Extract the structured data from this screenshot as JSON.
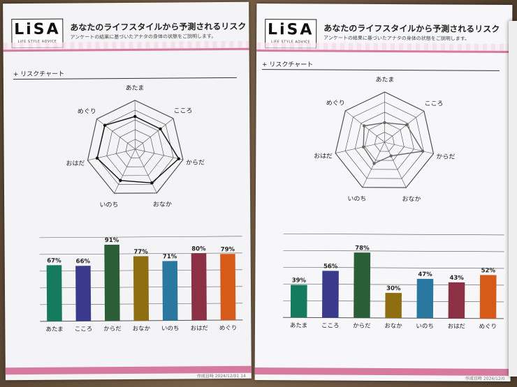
{
  "header": {
    "logo_main": "LiSA",
    "logo_sub": "LIFE STYLE ADVICE",
    "title": "あなたのライフスタイルから予測されるリスク",
    "subtitle": "アンケートの結果に基づいたアナタの身体の状態をご説明します。"
  },
  "section": {
    "label": "リスクチャート",
    "plus_icon": "plus-icon"
  },
  "footer": {
    "label_left": "作成日時 2024/12/01 14",
    "label_right": "作成日時 2024/12/0"
  },
  "colors": {
    "header_line": "#d67aa0",
    "bars": [
      "#157a5e",
      "#3a3a8c",
      "#2b5d37",
      "#8e6e10",
      "#2a78a0",
      "#8b3045",
      "#d65a1a"
    ]
  },
  "chart_data": [
    {
      "type": "radar",
      "categories": [
        "あたま",
        "こころ",
        "からだ",
        "おなか",
        "いのち",
        "おはだ",
        "めぐり"
      ],
      "values": [
        67,
        66,
        91,
        77,
        71,
        80,
        79
      ],
      "rmax": 100,
      "rings": 5
    },
    {
      "type": "bar",
      "categories": [
        "あたま",
        "こころ",
        "からだ",
        "おなか",
        "いのち",
        "おはだ",
        "めぐり"
      ],
      "values": [
        67,
        66,
        91,
        77,
        71,
        80,
        79
      ],
      "labels": [
        "67%",
        "66%",
        "91%",
        "77%",
        "71%",
        "80%",
        "79%"
      ],
      "ylim": [
        0,
        100
      ],
      "grid": true
    },
    {
      "type": "radar",
      "categories": [
        "あたま",
        "こころ",
        "からだ",
        "おなか",
        "いのち",
        "おはだ",
        "めぐり"
      ],
      "values": [
        39,
        56,
        78,
        30,
        47,
        43,
        52
      ],
      "rmax": 100,
      "rings": 5
    },
    {
      "type": "bar",
      "categories": [
        "あたま",
        "こころ",
        "からだ",
        "おなか",
        "いのち",
        "おはだ",
        "めぐり"
      ],
      "values": [
        39,
        56,
        78,
        30,
        47,
        43,
        52
      ],
      "labels": [
        "39%",
        "56%",
        "78%",
        "30%",
        "47%",
        "43%",
        "52%"
      ],
      "ylim": [
        0,
        100
      ],
      "grid": true
    }
  ]
}
